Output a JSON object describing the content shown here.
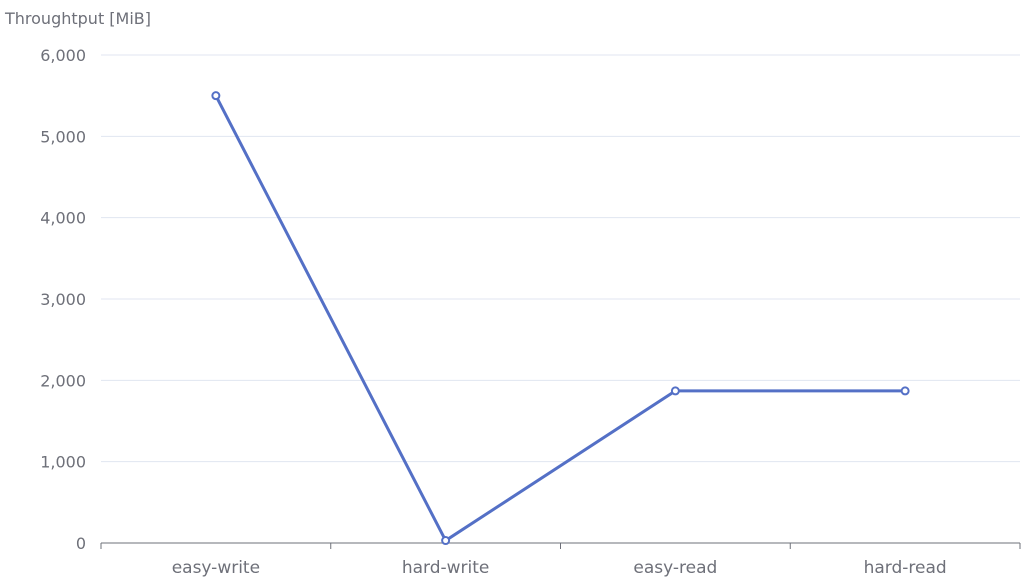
{
  "chart_data": {
    "type": "line",
    "title": "",
    "xlabel": "",
    "ylabel": "Throughtput [MiB]",
    "categories": [
      "easy-write",
      "hard-write",
      "easy-read",
      "hard-read"
    ],
    "series": [
      {
        "values": [
          5500,
          30,
          1870,
          1870
        ]
      }
    ],
    "ylim": [
      0,
      6000
    ],
    "yticks": [
      "0",
      "1,000",
      "2,000",
      "3,000",
      "4,000",
      "5,000",
      "6,000"
    ],
    "grid": true,
    "legend": "none",
    "colors": {
      "line": "#5470c6",
      "grid": "#e0e6f1",
      "axis": "#6e7079",
      "text": "#6e7079"
    }
  }
}
